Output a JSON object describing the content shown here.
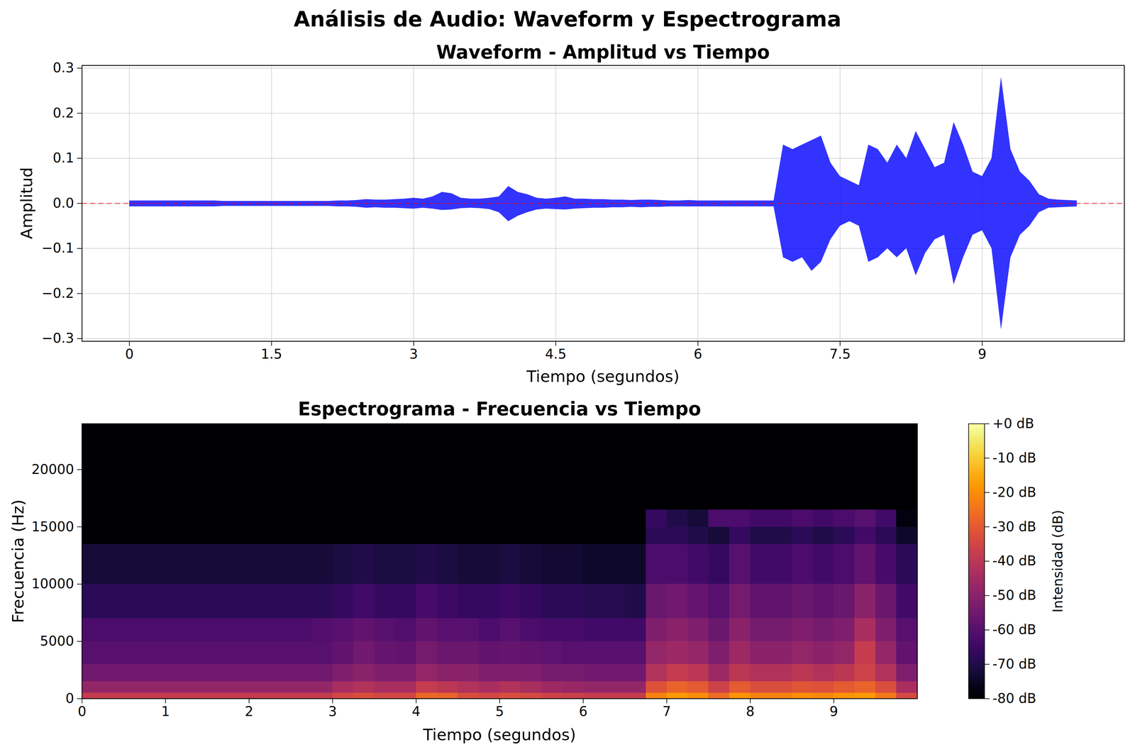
{
  "title": "Análisis de Audio: Waveform y Espectrograma",
  "chart_data": [
    {
      "type": "area",
      "title": "Waveform - Amplitud vs Tiempo",
      "x_label": "Tiempo (segundos)",
      "y_label": "Amplitud",
      "color": "blue",
      "grid": true,
      "xlim": [
        -0.5,
        10.5
      ],
      "xticks": [
        0,
        1.5,
        3,
        4.5,
        6,
        7.5,
        9
      ],
      "ylim": [
        -0.306,
        0.306
      ],
      "yticks": [
        {
          "value": -0.3,
          "label": "−0.3"
        },
        {
          "value": -0.2,
          "label": "−0.2"
        },
        {
          "value": -0.1,
          "label": "−0.1"
        },
        {
          "value": 0,
          "label": "0.0"
        },
        {
          "value": 0.1,
          "label": "0.1"
        },
        {
          "value": 0.2,
          "label": "0.2"
        },
        {
          "value": 0.3,
          "label": "0.3"
        }
      ],
      "reference_line": {
        "value": 0,
        "color": "red",
        "line_style": "dashed"
      },
      "x": [
        0,
        0.1,
        0.2,
        0.3,
        0.4,
        0.5,
        0.6,
        0.7,
        0.8,
        0.9,
        1,
        1.1,
        1.2,
        1.3,
        1.4,
        1.5,
        1.6,
        1.7,
        1.8,
        1.9,
        2,
        2.1,
        2.2,
        2.3,
        2.4,
        2.5,
        2.6,
        2.7,
        2.8,
        2.9,
        3,
        3.1,
        3.2,
        3.3,
        3.4,
        3.5,
        3.6,
        3.7,
        3.8,
        3.9,
        4,
        4.1,
        4.2,
        4.3,
        4.4,
        4.5,
        4.6,
        4.7,
        4.8,
        4.9,
        5,
        5.1,
        5.2,
        5.3,
        5.4,
        5.5,
        5.6,
        5.7,
        5.8,
        5.9,
        6,
        6.1,
        6.2,
        6.3,
        6.4,
        6.5,
        6.6,
        6.7,
        6.8,
        6.9,
        7,
        7.1,
        7.2,
        7.3,
        7.4,
        7.5,
        7.6,
        7.7,
        7.8,
        7.9,
        8,
        8.1,
        8.2,
        8.3,
        8.4,
        8.5,
        8.6,
        8.7,
        8.8,
        8.9,
        9,
        9.1,
        9.2,
        9.3,
        9.4,
        9.5,
        9.6,
        9.7,
        9.8,
        9.9,
        10
      ],
      "values_max": [
        0.006,
        0.006,
        0.006,
        0.006,
        0.006,
        0.006,
        0.006,
        0.006,
        0.006,
        0.006,
        0.005,
        0.005,
        0.005,
        0.005,
        0.005,
        0.005,
        0.005,
        0.005,
        0.005,
        0.005,
        0.005,
        0.005,
        0.006,
        0.006,
        0.007,
        0.009,
        0.008,
        0.008,
        0.009,
        0.01,
        0.012,
        0.01,
        0.015,
        0.025,
        0.022,
        0.012,
        0.01,
        0.01,
        0.012,
        0.015,
        0.038,
        0.025,
        0.02,
        0.012,
        0.01,
        0.012,
        0.015,
        0.01,
        0.01,
        0.009,
        0.009,
        0.008,
        0.008,
        0.007,
        0.008,
        0.008,
        0.007,
        0.006,
        0.006,
        0.007,
        0.006,
        0.006,
        0.006,
        0.006,
        0.006,
        0.006,
        0.006,
        0.006,
        0.006,
        0.13,
        0.12,
        0.13,
        0.14,
        0.15,
        0.09,
        0.06,
        0.05,
        0.04,
        0.13,
        0.12,
        0.09,
        0.13,
        0.1,
        0.16,
        0.12,
        0.08,
        0.09,
        0.18,
        0.13,
        0.07,
        0.06,
        0.1,
        0.28,
        0.12,
        0.07,
        0.05,
        0.02,
        0.01,
        0.008,
        0.007,
        0.006
      ],
      "values_min": [
        -0.007,
        -0.007,
        -0.007,
        -0.007,
        -0.007,
        -0.007,
        -0.007,
        -0.007,
        -0.007,
        -0.007,
        -0.006,
        -0.006,
        -0.006,
        -0.006,
        -0.006,
        -0.006,
        -0.006,
        -0.006,
        -0.006,
        -0.006,
        -0.006,
        -0.006,
        -0.007,
        -0.007,
        -0.008,
        -0.01,
        -0.009,
        -0.01,
        -0.01,
        -0.011,
        -0.012,
        -0.01,
        -0.012,
        -0.015,
        -0.014,
        -0.011,
        -0.01,
        -0.011,
        -0.013,
        -0.02,
        -0.04,
        -0.028,
        -0.02,
        -0.014,
        -0.012,
        -0.013,
        -0.014,
        -0.012,
        -0.011,
        -0.01,
        -0.01,
        -0.009,
        -0.009,
        -0.008,
        -0.009,
        -0.008,
        -0.008,
        -0.007,
        -0.007,
        -0.007,
        -0.007,
        -0.007,
        -0.007,
        -0.007,
        -0.007,
        -0.007,
        -0.007,
        -0.007,
        -0.007,
        -0.12,
        -0.13,
        -0.12,
        -0.15,
        -0.13,
        -0.08,
        -0.05,
        -0.04,
        -0.05,
        -0.13,
        -0.12,
        -0.1,
        -0.12,
        -0.1,
        -0.16,
        -0.11,
        -0.08,
        -0.07,
        -0.18,
        -0.12,
        -0.07,
        -0.06,
        -0.1,
        -0.28,
        -0.12,
        -0.07,
        -0.05,
        -0.02,
        -0.01,
        -0.009,
        -0.008,
        -0.007
      ]
    },
    {
      "type": "heatmap",
      "title": "Espectrograma - Frecuencia vs Tiempo",
      "x_label": "Tiempo (segundos)",
      "y_label": "Frecuencia (Hz)",
      "grid": false,
      "xlim": [
        0,
        10
      ],
      "xticks": [
        0,
        1,
        2,
        3,
        4,
        5,
        6,
        7,
        8,
        9
      ],
      "ylim": [
        0,
        24000
      ],
      "yticks": [
        0,
        5000,
        10000,
        15000,
        20000
      ],
      "time_bins": [
        0,
        0.25,
        0.5,
        0.75,
        1,
        1.25,
        1.5,
        1.75,
        2,
        2.25,
        2.5,
        2.75,
        3,
        3.25,
        3.5,
        3.75,
        4,
        4.25,
        4.5,
        4.75,
        5,
        5.25,
        5.5,
        5.75,
        6,
        6.25,
        6.5,
        6.75,
        7,
        7.25,
        7.5,
        7.75,
        8,
        8.25,
        8.5,
        8.75,
        9,
        9.25,
        9.5,
        9.75,
        10
      ],
      "freq_bins": [
        0,
        500,
        1500,
        3000,
        5000,
        7000,
        10000,
        13500,
        15000,
        16500,
        24000
      ],
      "cells": [
        [
          -38,
          -38,
          -38,
          -38,
          -38,
          -38,
          -38,
          -38,
          -38,
          -38,
          -38,
          -38,
          -35,
          -33,
          -35,
          -35,
          -27,
          -28,
          -33,
          -35,
          -33,
          -34,
          -36,
          -37,
          -38,
          -38,
          -38,
          -22,
          -18,
          -20,
          -26,
          -19,
          -22,
          -22,
          -20,
          -21,
          -19,
          -18,
          -24,
          -34
        ],
        [
          -48,
          -48,
          -48,
          -48,
          -48,
          -48,
          -48,
          -48,
          -48,
          -48,
          -48,
          -48,
          -44,
          -42,
          -44,
          -44,
          -38,
          -40,
          -42,
          -44,
          -42,
          -44,
          -46,
          -47,
          -48,
          -48,
          -48,
          -32,
          -28,
          -30,
          -36,
          -30,
          -33,
          -33,
          -31,
          -32,
          -30,
          -28,
          -33,
          -44
        ],
        [
          -55,
          -55,
          -55,
          -55,
          -55,
          -55,
          -55,
          -55,
          -55,
          -55,
          -55,
          -55,
          -52,
          -50,
          -52,
          -52,
          -48,
          -50,
          -50,
          -52,
          -52,
          -52,
          -54,
          -54,
          -55,
          -55,
          -55,
          -42,
          -38,
          -40,
          -46,
          -40,
          -42,
          -42,
          -40,
          -42,
          -40,
          -36,
          -42,
          -52
        ],
        [
          -60,
          -60,
          -60,
          -60,
          -60,
          -60,
          -60,
          -60,
          -60,
          -60,
          -60,
          -60,
          -58,
          -55,
          -57,
          -58,
          -54,
          -56,
          -56,
          -58,
          -57,
          -58,
          -59,
          -60,
          -60,
          -60,
          -60,
          -48,
          -46,
          -48,
          -52,
          -46,
          -50,
          -50,
          -48,
          -50,
          -48,
          -38,
          -48,
          -58
        ],
        [
          -62,
          -62,
          -62,
          -62,
          -62,
          -62,
          -62,
          -62,
          -62,
          -62,
          -62,
          -61,
          -60,
          -58,
          -60,
          -61,
          -58,
          -60,
          -60,
          -62,
          -60,
          -62,
          -63,
          -63,
          -64,
          -64,
          -64,
          -52,
          -50,
          -52,
          -56,
          -50,
          -54,
          -54,
          -52,
          -54,
          -52,
          -44,
          -52,
          -60
        ],
        [
          -68,
          -68,
          -68,
          -68,
          -68,
          -68,
          -68,
          -68,
          -68,
          -68,
          -68,
          -68,
          -66,
          -64,
          -66,
          -66,
          -63,
          -65,
          -66,
          -66,
          -65,
          -66,
          -68,
          -68,
          -69,
          -69,
          -70,
          -56,
          -55,
          -57,
          -60,
          -54,
          -58,
          -58,
          -56,
          -58,
          -56,
          -50,
          -56,
          -64
        ],
        [
          -72,
          -72,
          -72,
          -72,
          -72,
          -72,
          -72,
          -72,
          -72,
          -72,
          -72,
          -72,
          -71,
          -70,
          -71,
          -71,
          -70,
          -71,
          -72,
          -72,
          -71,
          -72,
          -73,
          -73,
          -74,
          -74,
          -74,
          -62,
          -62,
          -64,
          -66,
          -60,
          -64,
          -64,
          -62,
          -64,
          -62,
          -58,
          -63,
          -68
        ],
        [
          -80,
          -80,
          -80,
          -80,
          -80,
          -80,
          -80,
          -80,
          -80,
          -80,
          -80,
          -80,
          -80,
          -80,
          -80,
          -80,
          -80,
          -80,
          -80,
          -80,
          -80,
          -80,
          -80,
          -80,
          -80,
          -80,
          -80,
          -68,
          -68,
          -70,
          -72,
          -66,
          -70,
          -70,
          -68,
          -70,
          -68,
          -64,
          -68,
          -74
        ],
        [
          -80,
          -80,
          -80,
          -80,
          -80,
          -80,
          -80,
          -80,
          -80,
          -80,
          -80,
          -80,
          -80,
          -80,
          -80,
          -80,
          -80,
          -80,
          -80,
          -80,
          -80,
          -80,
          -80,
          -80,
          -80,
          -80,
          -80,
          -66,
          -70,
          -72,
          -62,
          -62,
          -64,
          -64,
          -62,
          -64,
          -62,
          -60,
          -64,
          -78
        ],
        [
          -80,
          -80,
          -80,
          -80,
          -80,
          -80,
          -80,
          -80,
          -80,
          -80,
          -80,
          -80,
          -80,
          -80,
          -80,
          -80,
          -80,
          -80,
          -80,
          -80,
          -80,
          -80,
          -80,
          -80,
          -80,
          -80,
          -80,
          -80,
          -80,
          -80,
          -80,
          -80,
          -80,
          -80,
          -80,
          -80,
          -80,
          -80,
          -80,
          -80
        ]
      ],
      "colorbar": {
        "label": "Intensidad (dB)",
        "color": "inferno",
        "lim": [
          -80,
          0
        ],
        "ticks": [
          {
            "value": -80,
            "label": "-80 dB"
          },
          {
            "value": -70,
            "label": "-70 dB"
          },
          {
            "value": -60,
            "label": "-60 dB"
          },
          {
            "value": -50,
            "label": "-50 dB"
          },
          {
            "value": -40,
            "label": "-40 dB"
          },
          {
            "value": -30,
            "label": "-30 dB"
          },
          {
            "value": -20,
            "label": "-20 dB"
          },
          {
            "value": -10,
            "label": "-10 dB"
          },
          {
            "value": 0,
            "label": "+0 dB"
          }
        ]
      }
    }
  ]
}
